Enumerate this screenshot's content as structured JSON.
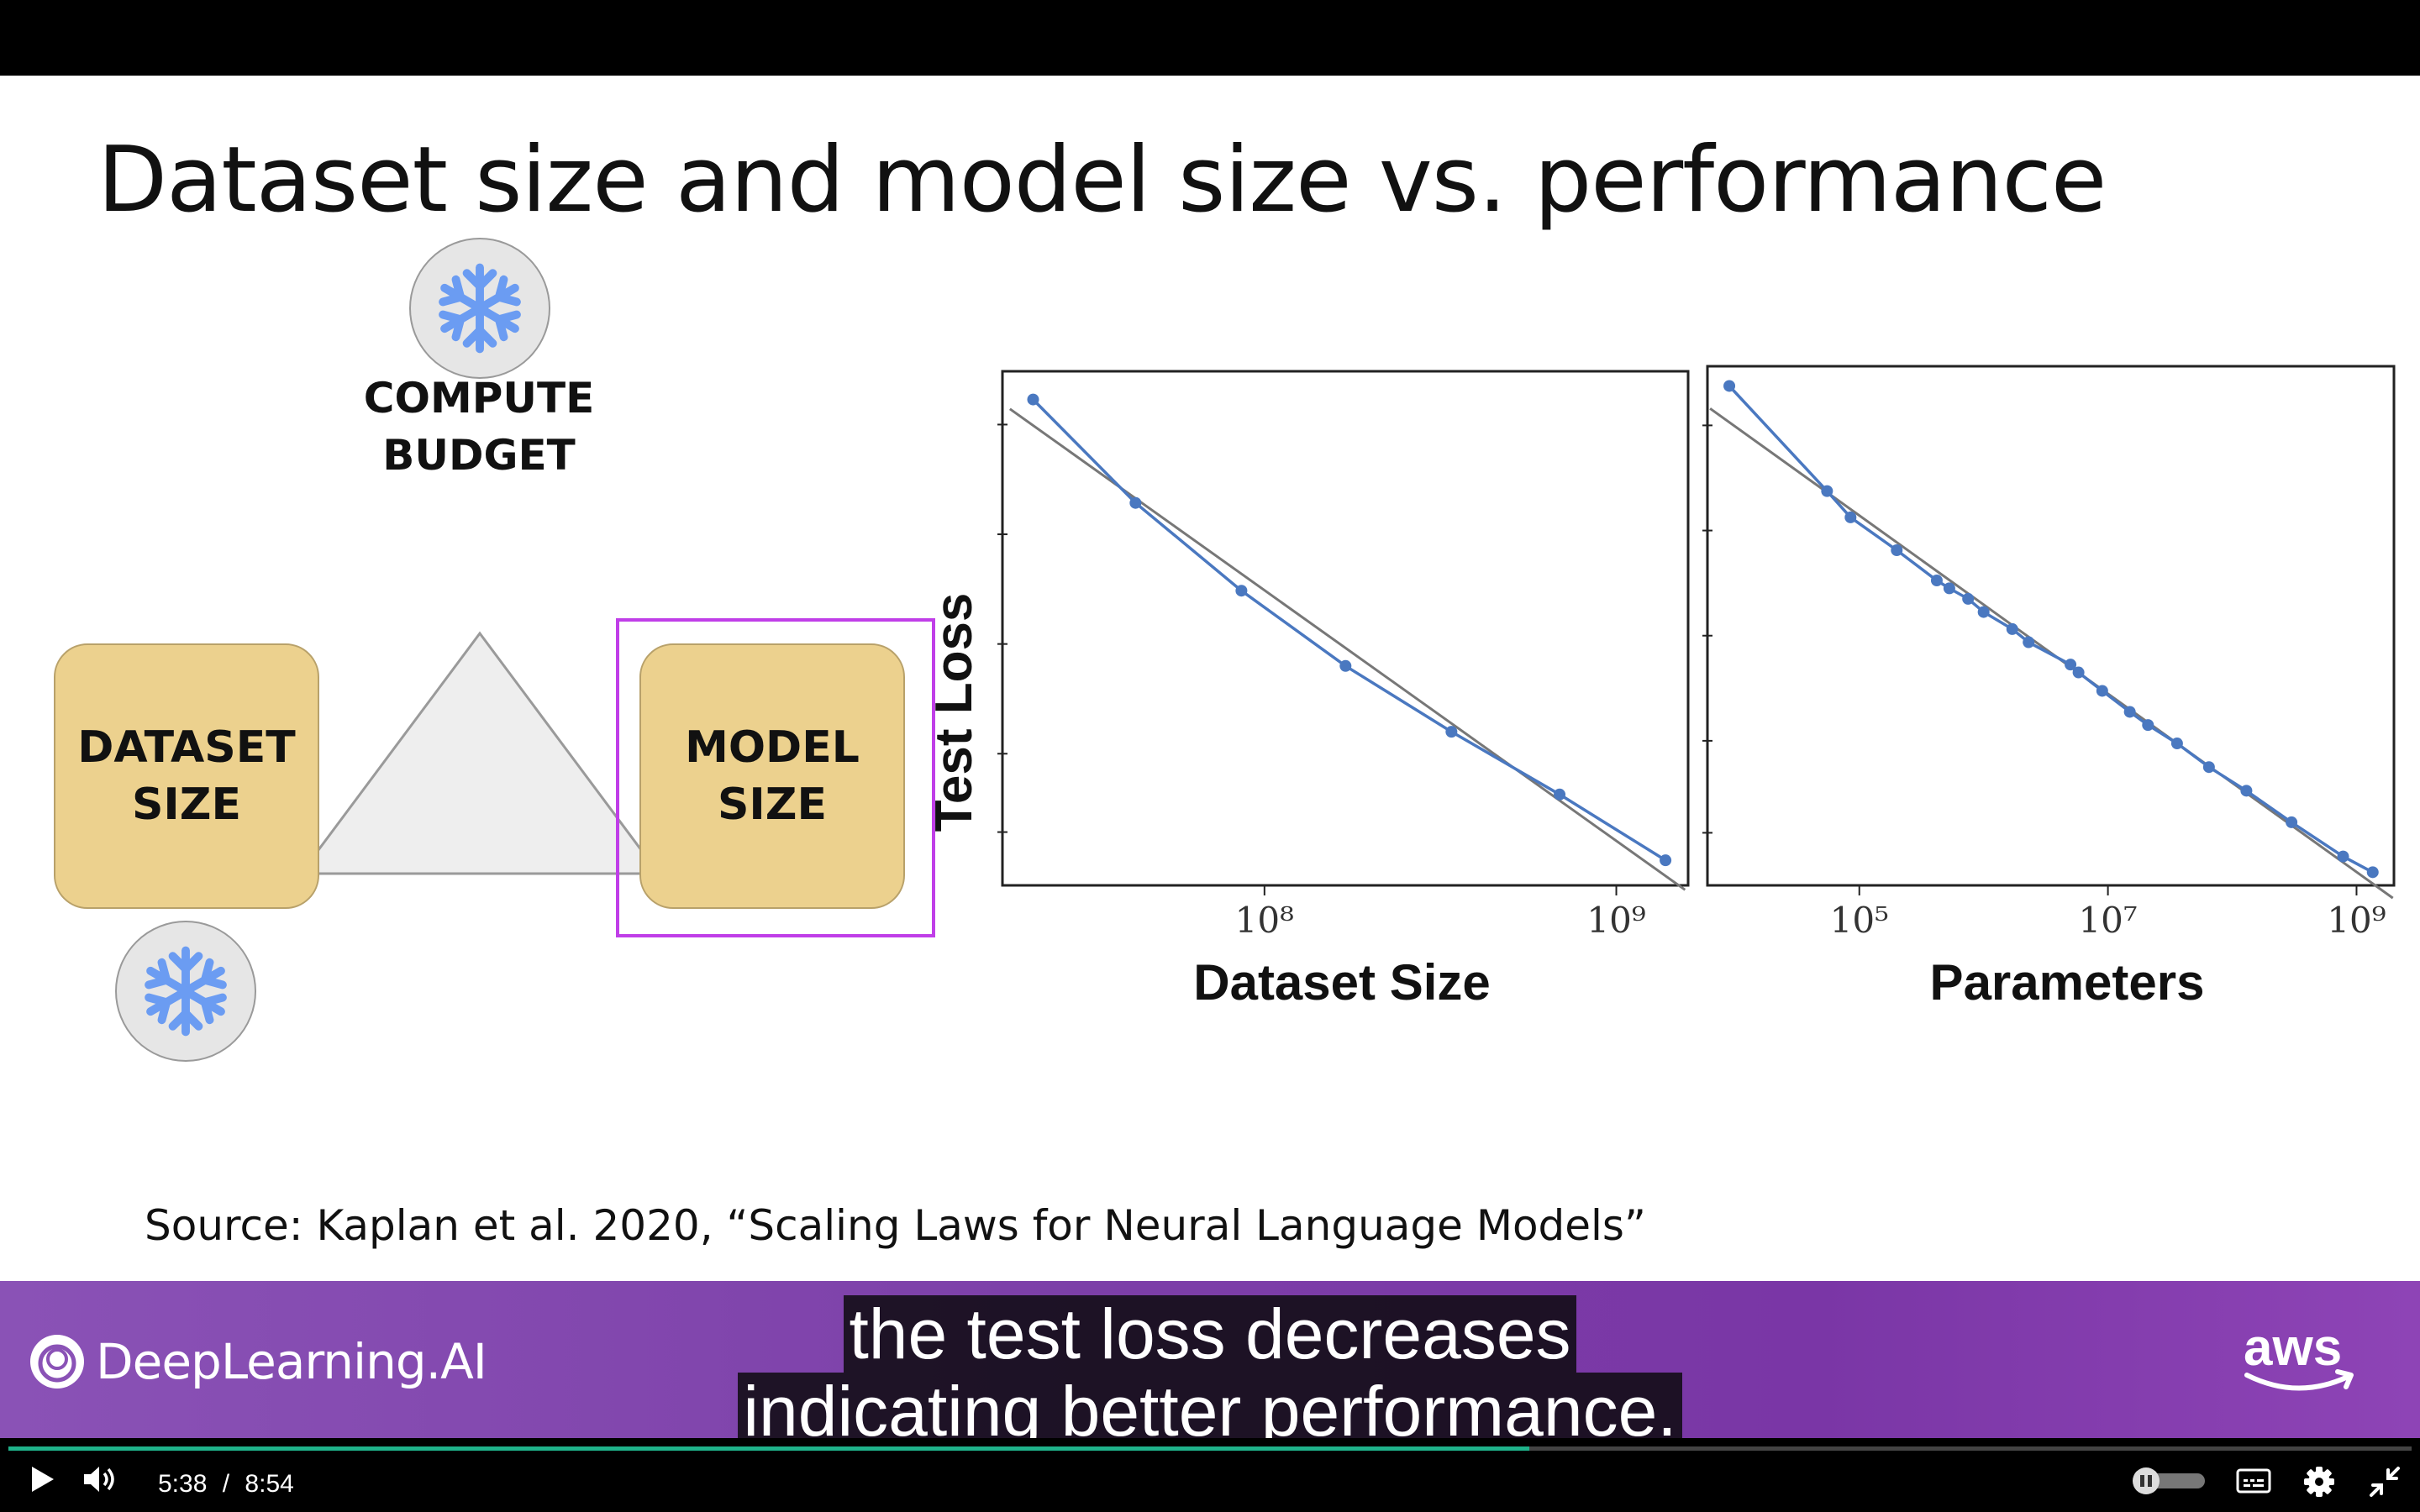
{
  "slide": {
    "title": "Dataset size and model size vs. performance",
    "compute_budget_label": "COMPUTE\nBUDGET",
    "dataset_size_label": "DATASET\nSIZE",
    "model_size_label": "MODEL\nSIZE",
    "source": "Source: Kaplan et al. 2020, “Scaling Laws for Neural Language Models”",
    "icons": [
      "snowflake-icon",
      "snowflake-icon"
    ],
    "colors": {
      "box": "#ecd18e",
      "highlight": "#c03ee8",
      "snowflake": "#6b9cf2",
      "series": "#4a78c0"
    }
  },
  "chart_data": [
    {
      "type": "line",
      "xlabel": "Dataset Size",
      "ylabel": "Test Loss",
      "x_scale": "log",
      "x_ticks": [
        {
          "value": 100000000,
          "label": "10⁸"
        },
        {
          "value": 1000000000,
          "label": "10⁹"
        }
      ],
      "xlim": [
        18000000,
        1600000000
      ],
      "series": [
        {
          "x": [
            22000000,
            43000000,
            86000000,
            170000000,
            340000000,
            690000000,
            1380000000
          ],
          "y": [
            4.33,
            4.0,
            3.72,
            3.48,
            3.27,
            3.07,
            2.86
          ]
        }
      ],
      "trend_line": true
    },
    {
      "type": "line",
      "xlabel": "Parameters",
      "ylabel": "Test Loss",
      "x_scale": "log",
      "x_ticks": [
        {
          "value": 100000,
          "label": "10⁵"
        },
        {
          "value": 10000000,
          "label": "10⁷"
        },
        {
          "value": 1000000000,
          "label": "10⁹"
        }
      ],
      "xlim": [
        6000,
        2000000000
      ],
      "series": [
        {
          "x": [
            9000,
            55000,
            85000,
            200000,
            420000,
            530000,
            750000,
            1000000,
            1700000,
            2300000,
            5000000,
            5800000,
            9000000,
            15000000,
            21000000,
            36000000,
            65000000,
            130000000,
            300000000,
            780000000,
            1350000000
          ],
          "y": [
            6.3,
            5.5,
            5.3,
            5.05,
            4.82,
            4.76,
            4.68,
            4.58,
            4.45,
            4.35,
            4.18,
            4.12,
            3.98,
            3.82,
            3.72,
            3.58,
            3.4,
            3.22,
            2.98,
            2.72,
            2.6
          ]
        }
      ],
      "trend_line": true
    }
  ],
  "banner": {
    "brand": "DeepLearning.AI",
    "partner": "aws",
    "caption_line1": "the test loss decreases",
    "caption_line2": "indicating better performance."
  },
  "player": {
    "current_time": "5:38",
    "separator": "/",
    "duration": "8:54",
    "progress": 0.633,
    "icons": [
      "play-icon",
      "volume-icon",
      "autoplay-toggle",
      "captions-icon",
      "settings-icon",
      "exit-fullscreen-icon"
    ],
    "progress_color": "#1fb28a"
  }
}
